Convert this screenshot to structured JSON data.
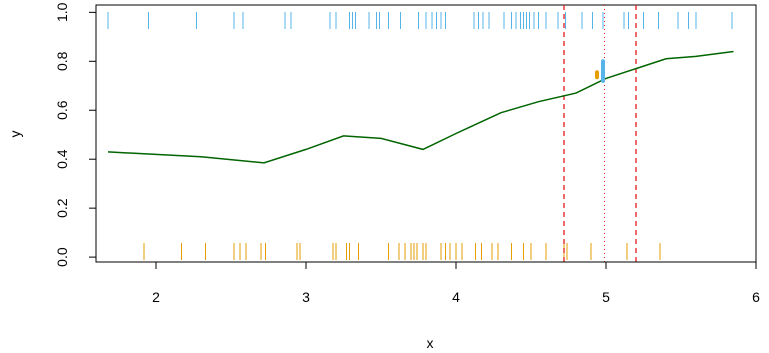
{
  "chart_data": {
    "type": "line",
    "xlabel": "x",
    "ylabel": "y",
    "xlim": [
      1.6,
      6.0
    ],
    "ylim": [
      -0.02,
      1.03
    ],
    "x_ticks": [
      2,
      3,
      4,
      5,
      6
    ],
    "y_ticks": [
      0.0,
      0.2,
      0.4,
      0.6,
      0.8,
      1.0
    ],
    "x_tick_labels": [
      "2",
      "3",
      "4",
      "5",
      "6"
    ],
    "y_tick_labels": [
      "0.0",
      "0.2",
      "0.4",
      "0.6",
      "0.8",
      "1.0"
    ],
    "grid": false,
    "colors": {
      "line": "#006400",
      "rug_top": "#56B4E9",
      "rug_bottom": "#E69F00",
      "ref_lines": "#E41A1C",
      "point_top": "#56B4E9",
      "point_bottom": "#E69F00"
    },
    "series": [
      {
        "x": [
          1.68,
          2.3,
          2.72,
          3.0,
          3.25,
          3.5,
          3.78,
          4.0,
          4.3,
          4.55,
          4.8,
          5.0,
          5.2,
          5.4,
          5.6,
          5.85
        ],
        "y": [
          0.43,
          0.41,
          0.385,
          0.44,
          0.495,
          0.485,
          0.44,
          0.505,
          0.59,
          0.635,
          0.67,
          0.73,
          0.77,
          0.81,
          0.82,
          0.84
        ]
      }
    ],
    "rug_top_x": [
      1.68,
      1.95,
      2.27,
      2.52,
      2.58,
      2.86,
      2.9,
      3.16,
      3.2,
      3.29,
      3.31,
      3.33,
      3.42,
      3.47,
      3.49,
      3.55,
      3.63,
      3.75,
      3.8,
      3.84,
      3.87,
      3.9,
      3.93,
      4.12,
      4.15,
      4.18,
      4.22,
      4.32,
      4.37,
      4.4,
      4.43,
      4.45,
      4.47,
      4.49,
      4.52,
      4.55,
      4.6,
      4.68,
      4.73,
      4.84,
      4.91,
      4.98,
      5.12,
      5.15,
      5.25,
      5.35,
      5.48,
      5.55,
      5.6,
      5.84
    ],
    "rug_bottom_x": [
      1.92,
      2.17,
      2.33,
      2.52,
      2.56,
      2.6,
      2.7,
      2.73,
      2.94,
      2.96,
      3.18,
      3.2,
      3.27,
      3.29,
      3.35,
      3.55,
      3.62,
      3.66,
      3.7,
      3.72,
      3.74,
      3.78,
      3.8,
      3.9,
      3.93,
      3.96,
      4.0,
      4.04,
      4.13,
      4.17,
      4.24,
      4.28,
      4.37,
      4.45,
      4.5,
      4.6,
      4.72,
      4.74,
      4.9,
      5.14,
      5.36
    ],
    "vlines_dashed_x": [
      4.72,
      5.2
    ],
    "vline_dotted_x": 4.99,
    "point_top": {
      "x": 4.98,
      "y_low": 0.72,
      "y_high": 0.8
    },
    "point_bottom": {
      "x": 4.94,
      "y_low": 0.735,
      "y_high": 0.755
    }
  }
}
